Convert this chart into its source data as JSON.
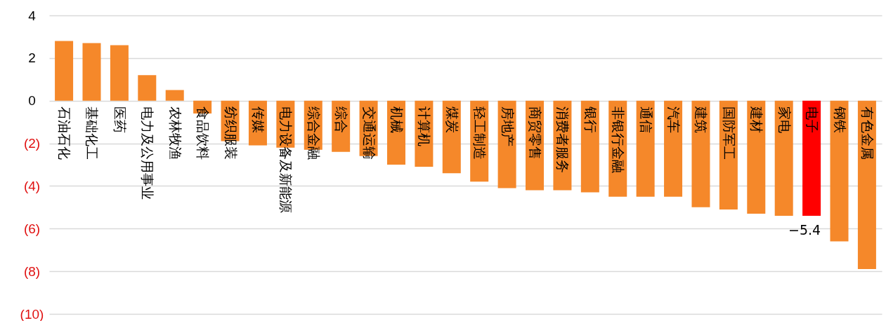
{
  "chart_data": {
    "type": "bar",
    "categories": [
      "石油石化",
      "基础化工",
      "医药",
      "电力及公用事业",
      "农林牧渔",
      "食品饮料",
      "纺织服装",
      "传媒",
      "电力设备及新能源",
      "综合金融",
      "综合",
      "交通运输",
      "机械",
      "计算机",
      "煤炭",
      "轻工制造",
      "房地产",
      "商贸零售",
      "消费者服务",
      "银行",
      "非银行金融",
      "通信",
      "汽车",
      "建筑",
      "国防军工",
      "建材",
      "家电",
      "电子",
      "钢铁",
      "有色金属"
    ],
    "values": [
      2.8,
      2.7,
      2.6,
      1.2,
      0.5,
      -0.6,
      -1.9,
      -2.1,
      -2.2,
      -2.3,
      -2.4,
      -2.6,
      -3.0,
      -3.1,
      -3.4,
      -3.8,
      -4.1,
      -4.2,
      -4.2,
      -4.3,
      -4.5,
      -4.5,
      -4.5,
      -5.0,
      -5.1,
      -5.3,
      -5.4,
      -5.4,
      -6.6,
      -7.9
    ],
    "colors": [
      "#f5882a",
      "#f5882a",
      "#f5882a",
      "#f5882a",
      "#f5882a",
      "#f5882a",
      "#f5882a",
      "#f5882a",
      "#f5882a",
      "#f5882a",
      "#f5882a",
      "#f5882a",
      "#f5882a",
      "#f5882a",
      "#f5882a",
      "#f5882a",
      "#f5882a",
      "#f5882a",
      "#f5882a",
      "#f5882a",
      "#f5882a",
      "#f5882a",
      "#f5882a",
      "#f5882a",
      "#f5882a",
      "#f5882a",
      "#f5882a",
      "#ff0000",
      "#f5882a",
      "#f5882a"
    ],
    "value_labels": [
      null,
      null,
      null,
      null,
      null,
      null,
      null,
      null,
      null,
      null,
      null,
      null,
      null,
      null,
      null,
      null,
      null,
      null,
      null,
      null,
      null,
      null,
      null,
      null,
      null,
      null,
      null,
      "−5.4",
      null,
      null
    ],
    "ylim": [
      -10,
      4
    ],
    "yticks": [
      4,
      2,
      0,
      {
        "value": -2,
        "label": "(2)"
      },
      {
        "value": -4,
        "label": "(4)"
      },
      {
        "value": -6,
        "label": "(6)"
      },
      {
        "value": -8,
        "label": "(8)"
      },
      {
        "value": -10,
        "label": "(10)"
      }
    ],
    "grid": "y"
  }
}
